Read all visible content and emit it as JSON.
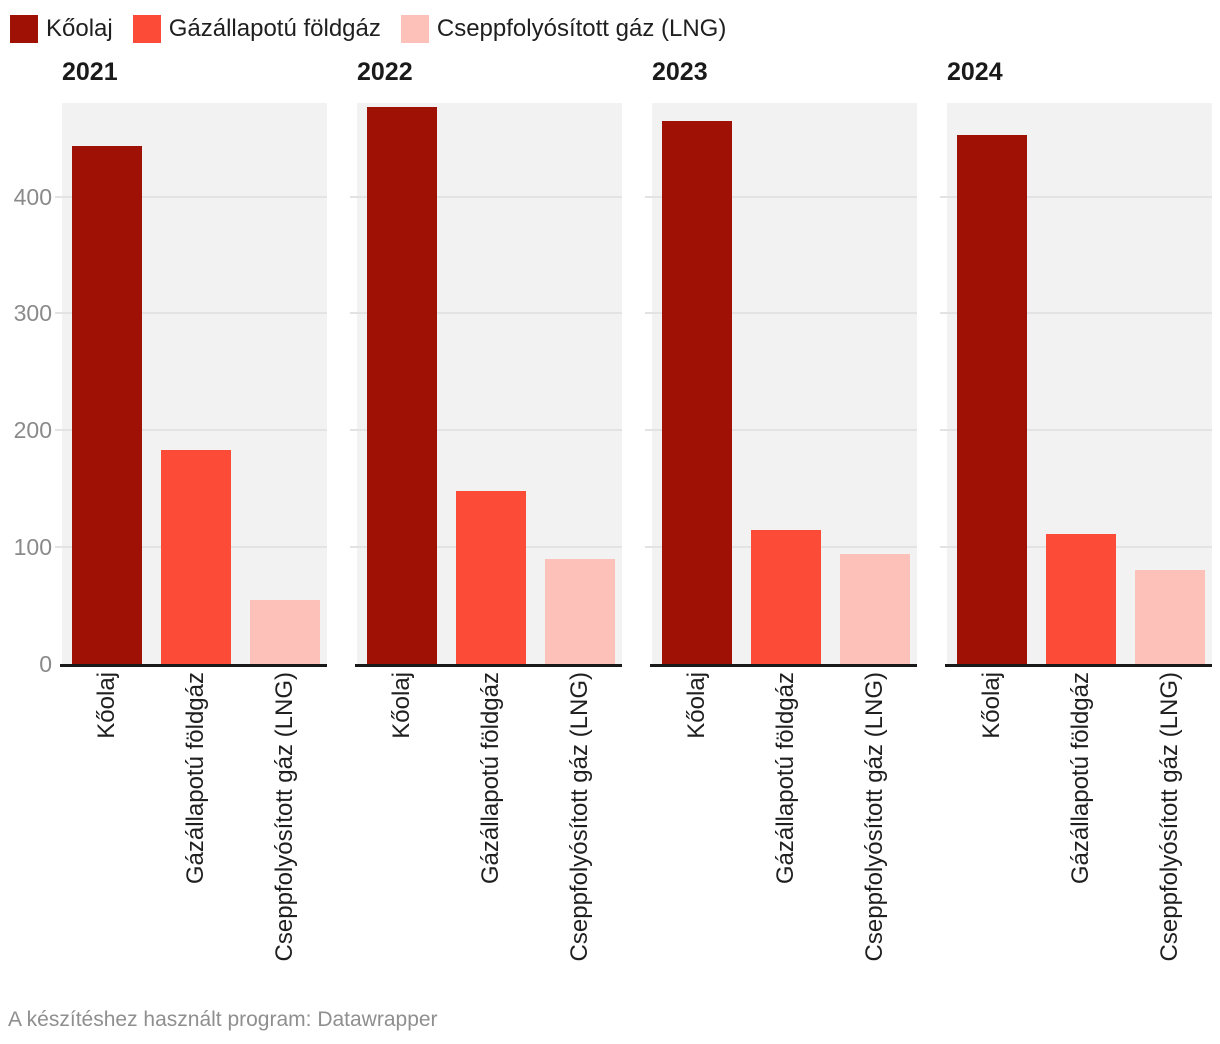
{
  "legend": {
    "items": [
      {
        "label": "Kőolaj",
        "color": "#a01105"
      },
      {
        "label": "Gázállapotú földgáz",
        "color": "#fc4b37"
      },
      {
        "label": "Cseppfolyósított gáz (LNG)",
        "color": "#fdc1b9"
      }
    ]
  },
  "footer": {
    "text": "A készítéshez használt program: Datawrapper"
  },
  "colors": {
    "background": "#ffffff",
    "plot_background": "#f2f2f2",
    "gridline": "#e3e3e3",
    "axis_line": "#191919",
    "tick_label": "#8a8a8a",
    "category_label": "#1f1f1f",
    "panel_title": "#1a1a1a",
    "footer_text": "#8f8f8f"
  },
  "chart_data": {
    "type": "bar",
    "layout": "small-multiples",
    "title": "",
    "categories": [
      "Kőolaj",
      "Gázállapotú földgáz",
      "Cseppfolyósított gáz (LNG)"
    ],
    "series_colors": [
      "#a01105",
      "#fc4b37",
      "#fdc1b9"
    ],
    "panels": [
      {
        "title": "2021",
        "values": [
          443,
          183,
          55
        ]
      },
      {
        "title": "2022",
        "values": [
          477,
          148,
          90
        ]
      },
      {
        "title": "2023",
        "values": [
          465,
          115,
          94
        ]
      },
      {
        "title": "2024",
        "values": [
          453,
          111,
          80
        ]
      }
    ],
    "xlabel": "",
    "ylabel": "",
    "ylim": [
      0,
      480
    ],
    "yticks": [
      0,
      100,
      200,
      300,
      400
    ],
    "grid": true,
    "legend_position": "top",
    "category_labels_rotated": true
  }
}
